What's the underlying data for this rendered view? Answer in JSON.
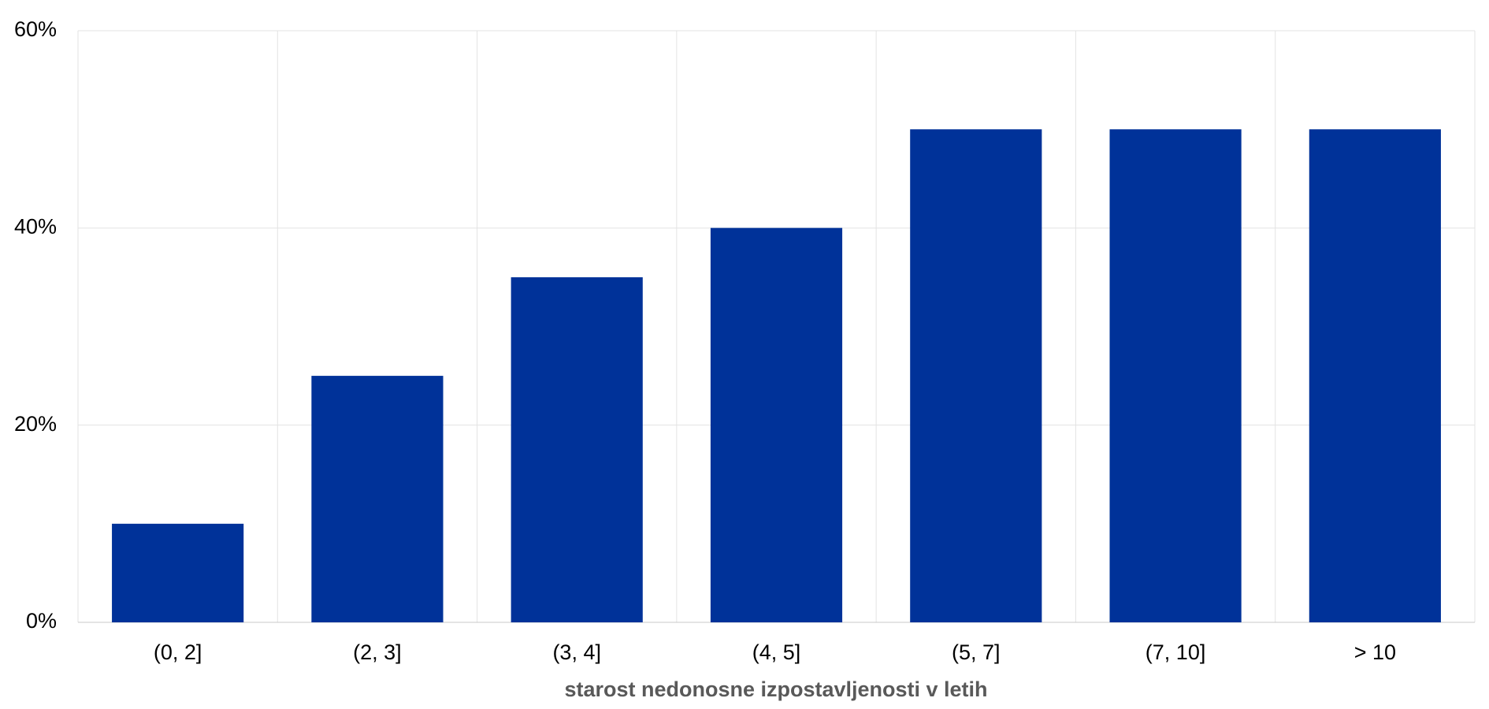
{
  "chart_data": {
    "type": "bar",
    "x_label": "starost nedonosne izpostavljenosti v letih",
    "categories": [
      "(0, 2]",
      "(2, 3]",
      "(3, 4]",
      "(4, 5]",
      "(5, 7]",
      "(7, 10]",
      "> 10"
    ],
    "values": [
      10,
      25,
      35,
      40,
      50,
      50,
      50
    ],
    "color": "#003299",
    "ylim": [
      0,
      60
    ],
    "yticks": [
      {
        "value": 0,
        "label": "0%"
      },
      {
        "value": 20,
        "label": "20%"
      },
      {
        "value": 40,
        "label": "40%"
      },
      {
        "value": 60,
        "label": "60%"
      }
    ],
    "grid": true
  }
}
